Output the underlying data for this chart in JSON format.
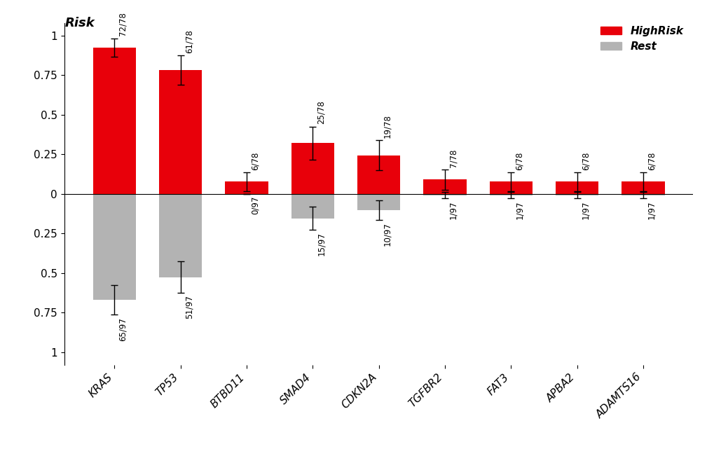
{
  "genes": [
    "KRAS",
    "TP53",
    "BTBD11",
    "SMAD4",
    "CDKN2A",
    "TGFBR2",
    "FAT3",
    "APBA2",
    "ADAMTS16"
  ],
  "high_risk_num": [
    72,
    61,
    6,
    25,
    19,
    7,
    6,
    6,
    6
  ],
  "high_risk_den": [
    78,
    78,
    78,
    78,
    78,
    78,
    78,
    78,
    78
  ],
  "rest_num": [
    65,
    51,
    0,
    15,
    10,
    1,
    1,
    1,
    1
  ],
  "rest_den": [
    97,
    97,
    97,
    97,
    97,
    97,
    97,
    97,
    97
  ],
  "high_risk_vals": [
    0.923,
    0.782,
    0.077,
    0.321,
    0.244,
    0.09,
    0.077,
    0.077,
    0.077
  ],
  "rest_vals": [
    0.67,
    0.526,
    0.0,
    0.155,
    0.103,
    0.01,
    0.01,
    0.01,
    0.01
  ],
  "high_risk_color": "#E8000A",
  "rest_color": "#B3B3B3",
  "bar_width": 0.65,
  "ylim": [
    -1.08,
    1.08
  ],
  "ylabel_text": "Risk",
  "legend_labels": [
    "HighRisk",
    "Rest"
  ],
  "background_color": "#FFFFFF",
  "label_fontsize": 8.5,
  "tick_fontsize": 11,
  "gene_fontsize": 11
}
